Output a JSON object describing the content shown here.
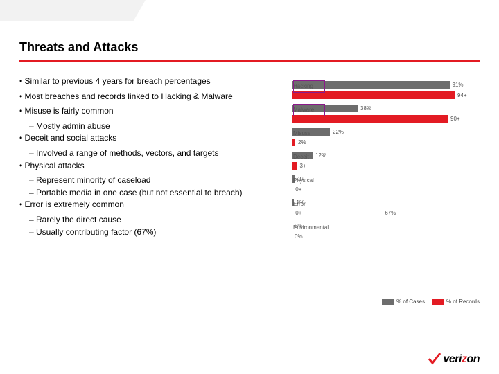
{
  "title": "Threats and Attacks",
  "bullets": [
    {
      "text": "Similar to previous 4 years for breach percentages",
      "subs": []
    },
    {
      "text": "Most breaches and records linked to Hacking & Malware",
      "subs": []
    },
    {
      "text": "Misuse is fairly common",
      "subs": [
        "Mostly admin abuse"
      ]
    },
    {
      "text": "Deceit and social attacks",
      "subs": [
        "Involved a range of methods, vectors, and targets"
      ]
    },
    {
      "text": "Physical attacks",
      "subs": [
        "Represent minority of caseload",
        "Portable media in one case (but not essential to breach)"
      ]
    },
    {
      "text": "Error is extremely common",
      "subs": [
        "Rarely the direct cause",
        "Usually contributing factor (67%)"
      ]
    }
  ],
  "chart": {
    "type": "bar",
    "bar_colors": {
      "cases": "#6d6d6d",
      "records": "#e31b23"
    },
    "highlight_color": "#8b1a8b",
    "max_value": 100,
    "categories": [
      {
        "label": "Hacking",
        "cases": 91,
        "records": 94,
        "cases_label": "91%",
        "records_label": "94+",
        "highlighted": true
      },
      {
        "label": "Malware",
        "cases": 38,
        "records": 90,
        "cases_label": "38%",
        "records_label": "90+",
        "highlighted": true
      },
      {
        "label": "Misuse",
        "cases": 22,
        "records": 2,
        "cases_label": "22%",
        "records_label": "2%",
        "highlighted": false
      },
      {
        "label": "Deceit",
        "cases": 12,
        "records": 3,
        "cases_label": "12%",
        "records_label": "3+",
        "highlighted": false
      },
      {
        "label": "Physical",
        "cases": 2,
        "records": 0.5,
        "cases_label": "2+",
        "records_label": "0+",
        "highlighted": false
      },
      {
        "label": "Error",
        "cases": 1,
        "records": 0.5,
        "cases_label": "1%",
        "records_label": "0+",
        "records_label2": "67%",
        "highlighted": false
      },
      {
        "label": "Environmental",
        "cases": 0,
        "records": 0,
        "cases_label": "0%",
        "records_label": "0%",
        "highlighted": false
      }
    ],
    "legend": [
      {
        "label": "% of Cases",
        "color": "#6d6d6d"
      },
      {
        "label": "% of Records",
        "color": "#e31b23"
      }
    ]
  },
  "logo": {
    "brand": "verizon",
    "check_color": "#e31b23"
  }
}
